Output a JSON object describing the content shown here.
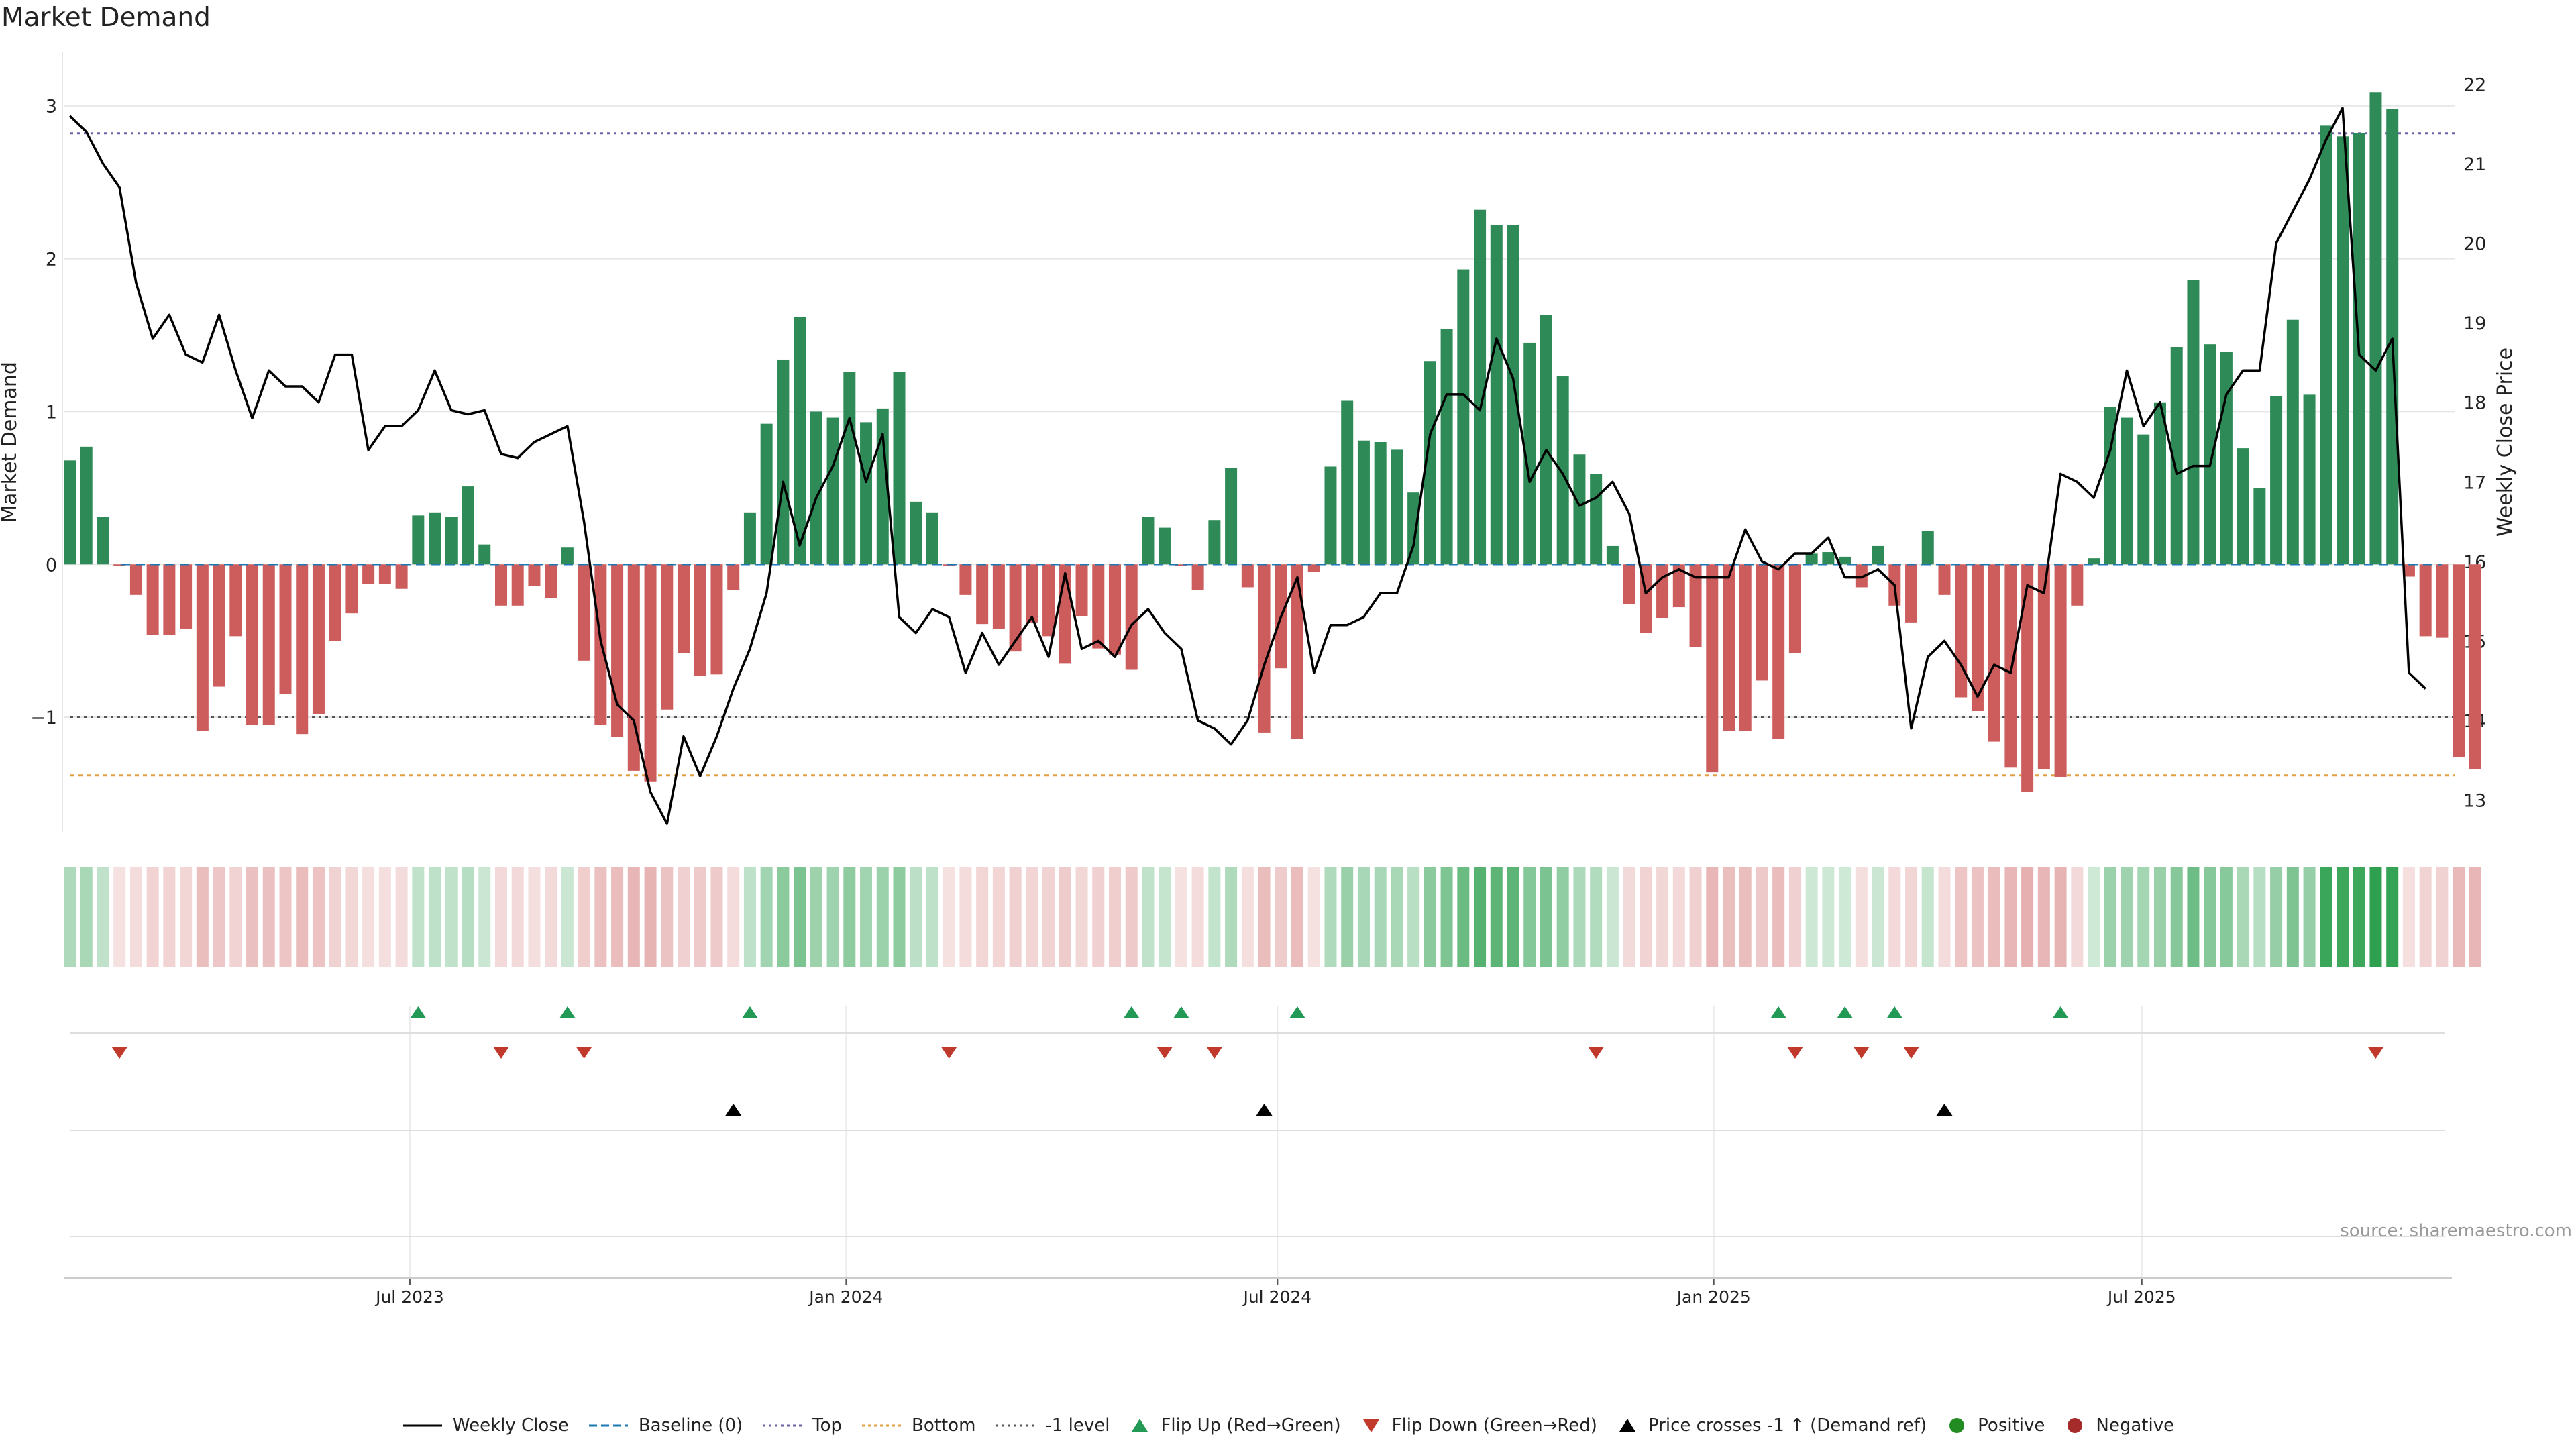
{
  "chart_data": {
    "type": "bar",
    "title": "Market Demand",
    "ylabel_left": "Market Demand",
    "ylabel_right": "Weekly Close Price",
    "ylim_left": [
      -1.75,
      3.35
    ],
    "ylim_right": [
      12.6,
      22.4
    ],
    "yticks_left": [
      3,
      2,
      1,
      0,
      -1
    ],
    "ytick_labels_left": [
      "3",
      "2",
      "1",
      "0",
      "−1"
    ],
    "yticks_right": [
      22,
      21,
      20,
      19,
      18,
      17,
      16,
      15,
      14,
      13
    ],
    "xtick_labels": [
      "Jul 2023",
      "Jan 2024",
      "Jul 2024",
      "Jan 2025",
      "Jul 2025"
    ],
    "xtick_positions_week": [
      20.5,
      46.8,
      72.8,
      99.1,
      124.9
    ],
    "reference_lines": {
      "top": {
        "label": "Top",
        "value": 2.82,
        "color": "#6b63a8"
      },
      "bottom": {
        "label": "Bottom",
        "value": -1.38,
        "color": "#e0a040"
      },
      "minus_one": {
        "label": "-1 level",
        "value": -1.0,
        "color": "#555555"
      },
      "baseline": {
        "label": "Baseline (0)",
        "value": 0,
        "color": "#1f77b4"
      }
    },
    "demand": [
      0.68,
      0.77,
      0.31,
      -0.01,
      -0.2,
      -0.46,
      -0.46,
      -0.42,
      -1.09,
      -0.8,
      -0.47,
      -1.05,
      -1.05,
      -0.85,
      -1.11,
      -0.98,
      -0.5,
      -0.32,
      -0.13,
      -0.13,
      -0.16,
      0.32,
      0.34,
      0.31,
      0.51,
      0.13,
      -0.27,
      -0.27,
      -0.14,
      -0.22,
      0.11,
      -0.63,
      -1.05,
      -1.13,
      -1.35,
      -1.42,
      -0.95,
      -0.58,
      -0.73,
      -0.72,
      -0.17,
      0.34,
      0.92,
      1.34,
      1.62,
      1.0,
      0.96,
      1.26,
      0.93,
      1.02,
      1.26,
      0.41,
      0.34,
      -0.01,
      -0.2,
      -0.39,
      -0.42,
      -0.57,
      -0.38,
      -0.47,
      -0.65,
      -0.34,
      -0.55,
      -0.59,
      -0.69,
      0.31,
      0.24,
      -0.01,
      -0.17,
      0.29,
      0.63,
      -0.15,
      -1.1,
      -0.68,
      -1.14,
      -0.05,
      0.64,
      1.07,
      0.81,
      0.8,
      0.75,
      0.47,
      1.33,
      1.54,
      1.93,
      2.32,
      2.22,
      2.22,
      1.45,
      1.63,
      1.23,
      0.72,
      0.59,
      0.12,
      -0.26,
      -0.45,
      -0.35,
      -0.28,
      -0.54,
      -1.36,
      -1.09,
      -1.09,
      -0.76,
      -1.14,
      -0.58,
      0.07,
      0.08,
      0.05,
      -0.15,
      0.12,
      -0.27,
      -0.38,
      0.22,
      -0.2,
      -0.87,
      -0.96,
      -1.16,
      -1.33,
      -1.49,
      -1.34,
      -1.39,
      -0.27,
      0.04,
      1.03,
      0.96,
      0.85,
      1.06,
      1.42,
      1.86,
      1.44,
      1.39,
      0.76,
      0.5,
      1.1,
      1.6,
      1.11,
      2.87,
      2.8,
      2.82,
      3.09,
      2.98,
      -0.08,
      -0.47,
      -0.48,
      -1.26,
      -1.34
    ],
    "price": [
      21.6,
      21.4,
      21.0,
      20.7,
      19.5,
      18.8,
      19.1,
      18.6,
      18.5,
      19.1,
      18.4,
      17.8,
      18.4,
      18.2,
      18.2,
      18.0,
      18.6,
      18.6,
      17.4,
      17.7,
      17.7,
      17.9,
      18.4,
      17.9,
      17.85,
      17.9,
      17.35,
      17.3,
      17.5,
      17.6,
      17.7,
      16.5,
      15.0,
      14.2,
      14.0,
      13.1,
      12.7,
      13.8,
      13.3,
      13.8,
      14.4,
      14.9,
      15.6,
      17.0,
      16.2,
      16.8,
      17.2,
      17.8,
      17.0,
      17.6,
      15.3,
      15.1,
      15.4,
      15.3,
      14.6,
      15.1,
      14.7,
      15.0,
      15.3,
      14.8,
      15.85,
      14.9,
      15.0,
      14.8,
      15.2,
      15.4,
      15.1,
      14.9,
      14.0,
      13.9,
      13.7,
      14.0,
      14.7,
      15.3,
      15.8,
      14.6,
      15.2,
      15.2,
      15.3,
      15.6,
      15.6,
      16.2,
      17.6,
      18.1,
      18.1,
      17.9,
      18.8,
      18.3,
      17.0,
      17.4,
      17.1,
      16.7,
      16.8,
      17.0,
      16.6,
      15.6,
      15.8,
      15.9,
      15.8,
      15.8,
      15.8,
      16.4,
      16.0,
      15.9,
      16.1,
      16.1,
      16.3,
      15.8,
      15.8,
      15.9,
      15.7,
      13.9,
      14.8,
      15.0,
      14.7,
      14.3,
      14.7,
      14.6,
      15.7,
      15.6,
      17.1,
      17.0,
      16.8,
      17.4,
      18.4,
      17.7,
      18.0,
      17.1,
      17.2,
      17.2,
      18.1,
      18.4,
      18.4,
      20.0,
      20.4,
      20.8,
      21.3,
      21.7,
      18.6,
      18.4,
      18.8,
      14.6,
      14.4
    ],
    "flip_up_weeks": [
      21,
      30,
      41,
      64,
      67,
      74,
      103,
      107,
      110,
      120
    ],
    "flip_down_weeks": [
      3,
      26,
      31,
      53,
      66,
      69,
      92,
      104,
      108,
      111,
      139
    ],
    "price_cross_weeks": [
      40,
      72,
      113
    ],
    "series_colors": {
      "positive": "#2e8b57",
      "negative": "#cd5c5c",
      "price": "#000000",
      "flip_up": "#229954",
      "flip_down": "#c0392b",
      "cross": "#000000",
      "grid": "#e6e6e6"
    },
    "legend": [
      {
        "label": "Weekly Close",
        "kind": "line-solid",
        "color": "#000000"
      },
      {
        "label": "Baseline (0)",
        "kind": "line-dashed",
        "color": "#1f77b4"
      },
      {
        "label": "Top",
        "kind": "line-dotted",
        "color": "#6b63a8"
      },
      {
        "label": "Bottom",
        "kind": "line-dotted",
        "color": "#e0a040"
      },
      {
        "label": "-1 level",
        "kind": "line-dotted",
        "color": "#555555"
      },
      {
        "label": "Flip Up (Red→Green)",
        "kind": "tri-up",
        "color": "#229954"
      },
      {
        "label": "Flip Down (Green→Red)",
        "kind": "tri-down",
        "color": "#c0392b"
      },
      {
        "label": "Price crosses -1 ↑ (Demand ref)",
        "kind": "tri-up",
        "color": "#000000"
      },
      {
        "label": "Positive",
        "kind": "dot",
        "color": "#228b22"
      },
      {
        "label": "Negative",
        "kind": "dot",
        "color": "#a52a2a"
      }
    ],
    "source": "source: sharemaestro.com"
  }
}
